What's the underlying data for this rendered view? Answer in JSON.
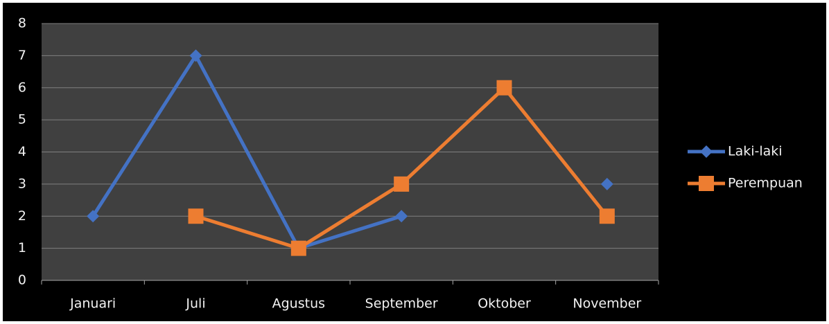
{
  "chart_data": {
    "type": "line",
    "categories": [
      "Januari",
      "Juli",
      "Agustus",
      "September",
      "Oktober",
      "November"
    ],
    "series": [
      {
        "name": "Laki-laki",
        "color": "#4472c4",
        "marker": "diamond",
        "values": [
          2,
          7,
          1,
          2,
          null,
          3
        ]
      },
      {
        "name": "Perempuan",
        "color": "#ed7d31",
        "marker": "square",
        "values": [
          null,
          2,
          1,
          3,
          6,
          2
        ]
      }
    ],
    "ylim": [
      0,
      8
    ],
    "yticks": [
      0,
      1,
      2,
      3,
      4,
      5,
      6,
      7,
      8
    ],
    "grid": true,
    "legend": "right"
  }
}
